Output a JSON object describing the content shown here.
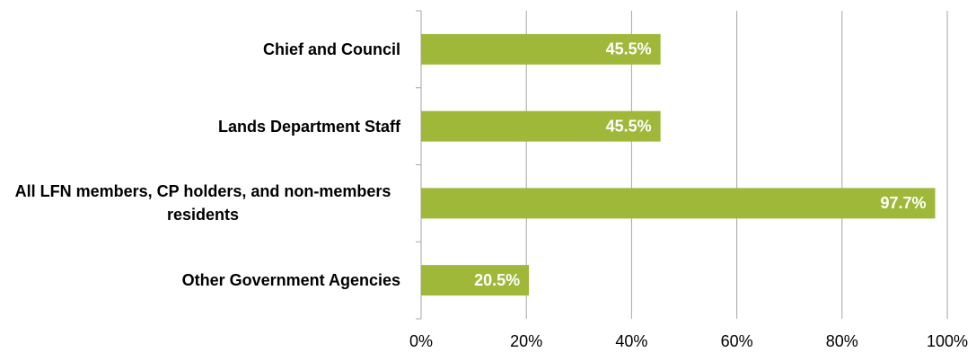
{
  "chart_data": {
    "type": "bar",
    "orientation": "horizontal",
    "categories": [
      "Chief and Council",
      "Lands Department Staff",
      "All LFN members, CP holders, and non-members residents",
      "Other Government  Agencies"
    ],
    "values": [
      45.5,
      45.5,
      97.7,
      20.5
    ],
    "value_labels": [
      "45.5%",
      "45.5%",
      "97.7%",
      "20.5%"
    ],
    "color": "#9fb83a",
    "xlim": [
      0,
      100
    ],
    "xticks": [
      {
        "value": 0,
        "label": "0%"
      },
      {
        "value": 20,
        "label": "20%"
      },
      {
        "value": 40,
        "label": "40%"
      },
      {
        "value": 60,
        "label": "60%"
      },
      {
        "value": 80,
        "label": "80%"
      },
      {
        "value": 100,
        "label": "100%"
      }
    ],
    "grid": true
  }
}
